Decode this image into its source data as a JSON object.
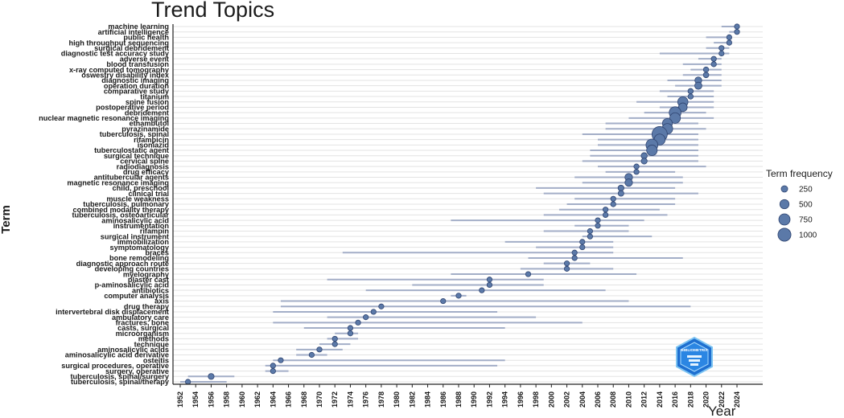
{
  "chart_data": {
    "type": "scatter",
    "title": "Trend Topics",
    "xlabel": "Year",
    "ylabel": "Term",
    "xlim": [
      1951,
      2025
    ],
    "x_ticks": [
      1952,
      1954,
      1956,
      1958,
      1960,
      1962,
      1964,
      1966,
      1968,
      1970,
      1972,
      1974,
      1976,
      1978,
      1980,
      1982,
      1984,
      1986,
      1988,
      1990,
      1992,
      1994,
      1996,
      1998,
      2000,
      2002,
      2004,
      2006,
      2008,
      2010,
      2012,
      2014,
      2016,
      2018,
      2020,
      2022,
      2024
    ],
    "legend": {
      "title": "Term frequency",
      "position": "right",
      "entries": [
        {
          "label": "250",
          "value": 250
        },
        {
          "label": "500",
          "value": 500
        },
        {
          "label": "750",
          "value": 750
        },
        {
          "label": "1000",
          "value": 1000
        }
      ]
    },
    "colors": {
      "point": "#5b79a8",
      "point_stroke": "#2f4470",
      "range": "#a3aec7",
      "grid": "#e3e3e3",
      "axis": "#222222"
    },
    "terms": [
      {
        "label": "machine learning",
        "x": 2024,
        "lo": 2022,
        "hi": 2024,
        "freq": 20
      },
      {
        "label": "artificial intelligence",
        "x": 2024,
        "lo": 2023,
        "hi": 2024,
        "freq": 20
      },
      {
        "label": "public health",
        "x": 2023,
        "lo": 2020,
        "hi": 2023,
        "freq": 40
      },
      {
        "label": "high throughput sequencing",
        "x": 2023,
        "lo": 2021,
        "hi": 2023,
        "freq": 30
      },
      {
        "label": "surgical debridement",
        "x": 2022,
        "lo": 2020,
        "hi": 2023,
        "freq": 60
      },
      {
        "label": "diagnostic test accuracy study",
        "x": 2022,
        "lo": 2014,
        "hi": 2023,
        "freq": 60
      },
      {
        "label": "adverse event",
        "x": 2021,
        "lo": 2019,
        "hi": 2022,
        "freq": 60
      },
      {
        "label": "blood transfusion",
        "x": 2021,
        "lo": 2017,
        "hi": 2022,
        "freq": 80
      },
      {
        "label": "x-ray computed tomography",
        "x": 2020,
        "lo": 2018,
        "hi": 2022,
        "freq": 120
      },
      {
        "label": "oswestry disability index",
        "x": 2020,
        "lo": 2017,
        "hi": 2022,
        "freq": 130
      },
      {
        "label": "diagnostic imaging",
        "x": 2019,
        "lo": 2015,
        "hi": 2022,
        "freq": 200
      },
      {
        "label": "operation duration",
        "x": 2019,
        "lo": 2016,
        "hi": 2022,
        "freq": 220
      },
      {
        "label": "comparative study",
        "x": 2018,
        "lo": 2014,
        "hi": 2021,
        "freq": 120
      },
      {
        "label": "titanium",
        "x": 2018,
        "lo": 2015,
        "hi": 2021,
        "freq": 120
      },
      {
        "label": "spine fusion",
        "x": 2017,
        "lo": 2011,
        "hi": 2021,
        "freq": 450
      },
      {
        "label": "postoperative period",
        "x": 2017,
        "lo": 2014,
        "hi": 2021,
        "freq": 320
      },
      {
        "label": "debridement",
        "x": 2016,
        "lo": 2012,
        "hi": 2020,
        "freq": 600
      },
      {
        "label": "nuclear magnetic resonance imaging",
        "x": 2016,
        "lo": 2010,
        "hi": 2021,
        "freq": 480
      },
      {
        "label": "ethambutol",
        "x": 2015,
        "lo": 2007,
        "hi": 2019,
        "freq": 420
      },
      {
        "label": "pyrazinamide",
        "x": 2015,
        "lo": 2007,
        "hi": 2020,
        "freq": 480
      },
      {
        "label": "tuberculosis, spinal",
        "x": 2014,
        "lo": 2004,
        "hi": 2019,
        "freq": 1000
      },
      {
        "label": "rifampicin",
        "x": 2014,
        "lo": 2006,
        "hi": 2019,
        "freq": 520
      },
      {
        "label": "isoniazid",
        "x": 2013,
        "lo": 2006,
        "hi": 2019,
        "freq": 600
      },
      {
        "label": "tuberculostatic agent",
        "x": 2013,
        "lo": 2005,
        "hi": 2019,
        "freq": 480
      },
      {
        "label": "surgical technique",
        "x": 2012,
        "lo": 2005,
        "hi": 2019,
        "freq": 160
      },
      {
        "label": "cervical spine",
        "x": 2012,
        "lo": 2004,
        "hi": 2019,
        "freq": 150
      },
      {
        "label": "radiodiagnosis",
        "x": 2011,
        "lo": 2006,
        "hi": 2020,
        "freq": 100
      },
      {
        "label": "drug efficacy",
        "x": 2011,
        "lo": 2007,
        "hi": 2016,
        "freq": 90
      },
      {
        "label": "antitubercular agents",
        "x": 2010,
        "lo": 2003,
        "hi": 2017,
        "freq": 250
      },
      {
        "label": "magnetic resonance imaging",
        "x": 2010,
        "lo": 2004,
        "hi": 2017,
        "freq": 240
      },
      {
        "label": "child, preschool",
        "x": 2009,
        "lo": 1998,
        "hi": 2016,
        "freq": 150
      },
      {
        "label": "clinical trial",
        "x": 2009,
        "lo": 1999,
        "hi": 2019,
        "freq": 140
      },
      {
        "label": "muscle weakness",
        "x": 2008,
        "lo": 2003,
        "hi": 2016,
        "freq": 90
      },
      {
        "label": "tuberculosis, pulmonary",
        "x": 2008,
        "lo": 2002,
        "hi": 2016,
        "freq": 100
      },
      {
        "label": "combined modality therapy",
        "x": 2007,
        "lo": 2001,
        "hi": 2014,
        "freq": 90
      },
      {
        "label": "tuberculosis, osteoarticular",
        "x": 2007,
        "lo": 1999,
        "hi": 2015,
        "freq": 110
      },
      {
        "label": "aminosalicylic acid",
        "x": 2006,
        "lo": 1987,
        "hi": 2012,
        "freq": 90
      },
      {
        "label": "instrumentation",
        "x": 2006,
        "lo": 2003,
        "hi": 2010,
        "freq": 90
      },
      {
        "label": "rifampin",
        "x": 2005,
        "lo": 1999,
        "hi": 2010,
        "freq": 90
      },
      {
        "label": "surgical instrument",
        "x": 2005,
        "lo": 2004,
        "hi": 2013,
        "freq": 80
      },
      {
        "label": "immobilization",
        "x": 2004,
        "lo": 1994,
        "hi": 2008,
        "freq": 90
      },
      {
        "label": "symptomatology",
        "x": 2004,
        "lo": 1998,
        "hi": 2008,
        "freq": 80
      },
      {
        "label": "braces",
        "x": 2003,
        "lo": 1973,
        "hi": 2008,
        "freq": 70
      },
      {
        "label": "bone remodeling",
        "x": 2003,
        "lo": 1997,
        "hi": 2017,
        "freq": 70
      },
      {
        "label": "diagnostic approach route",
        "x": 2002,
        "lo": 1999,
        "hi": 2005,
        "freq": 60
      },
      {
        "label": "developing countries",
        "x": 2002,
        "lo": 1996,
        "hi": 2008,
        "freq": 60
      },
      {
        "label": "myelography",
        "x": 1997,
        "lo": 1987,
        "hi": 2011,
        "freq": 110
      },
      {
        "label": "plaster cast",
        "x": 1992,
        "lo": 1971,
        "hi": 1999,
        "freq": 80
      },
      {
        "label": "p-aminosalicylic acid",
        "x": 1992,
        "lo": 1982,
        "hi": 1999,
        "freq": 80
      },
      {
        "label": "antibiotics",
        "x": 1991,
        "lo": 1976,
        "hi": 2007,
        "freq": 80
      },
      {
        "label": "computer analysis",
        "x": 1988,
        "lo": 1987,
        "hi": 1989,
        "freq": 70
      },
      {
        "label": "axis",
        "x": 1986,
        "lo": 1965,
        "hi": 2010,
        "freq": 60
      },
      {
        "label": "drug therapy",
        "x": 1978,
        "lo": 1965,
        "hi": 2018,
        "freq": 100
      },
      {
        "label": "intervertebral disk displacement",
        "x": 1977,
        "lo": 1964,
        "hi": 1993,
        "freq": 80
      },
      {
        "label": "ambulatory care",
        "x": 1976,
        "lo": 1971,
        "hi": 1998,
        "freq": 70
      },
      {
        "label": "fractures, bone",
        "x": 1975,
        "lo": 1964,
        "hi": 2004,
        "freq": 70
      },
      {
        "label": "casts, surgical",
        "x": 1974,
        "lo": 1968,
        "hi": 1994,
        "freq": 80
      },
      {
        "label": "microorganism",
        "x": 1974,
        "lo": 1972,
        "hi": 1975,
        "freq": 70
      },
      {
        "label": "methods",
        "x": 1972,
        "lo": 1971,
        "hi": 1975,
        "freq": 70
      },
      {
        "label": "technique",
        "x": 1972,
        "lo": 1970,
        "hi": 1974,
        "freq": 70
      },
      {
        "label": "aminosalicylic acids",
        "x": 1970,
        "lo": 1967,
        "hi": 1973,
        "freq": 70
      },
      {
        "label": "aminosalicylic acid derivative",
        "x": 1969,
        "lo": 1967,
        "hi": 1971,
        "freq": 70
      },
      {
        "label": "osteitis",
        "x": 1965,
        "lo": 1964,
        "hi": 1994,
        "freq": 70
      },
      {
        "label": "surgical procedures, operative",
        "x": 1964,
        "lo": 1963,
        "hi": 1993,
        "freq": 70
      },
      {
        "label": "surgery, operative",
        "x": 1964,
        "lo": 1963,
        "hi": 1966,
        "freq": 70
      },
      {
        "label": "tuberculosis, spinal/surgery",
        "x": 1956,
        "lo": 1953,
        "hi": 1959,
        "freq": 150
      },
      {
        "label": "tuberculosis, spinal/therapy",
        "x": 1953,
        "lo": 1952,
        "hi": 1958,
        "freq": 70
      }
    ]
  }
}
